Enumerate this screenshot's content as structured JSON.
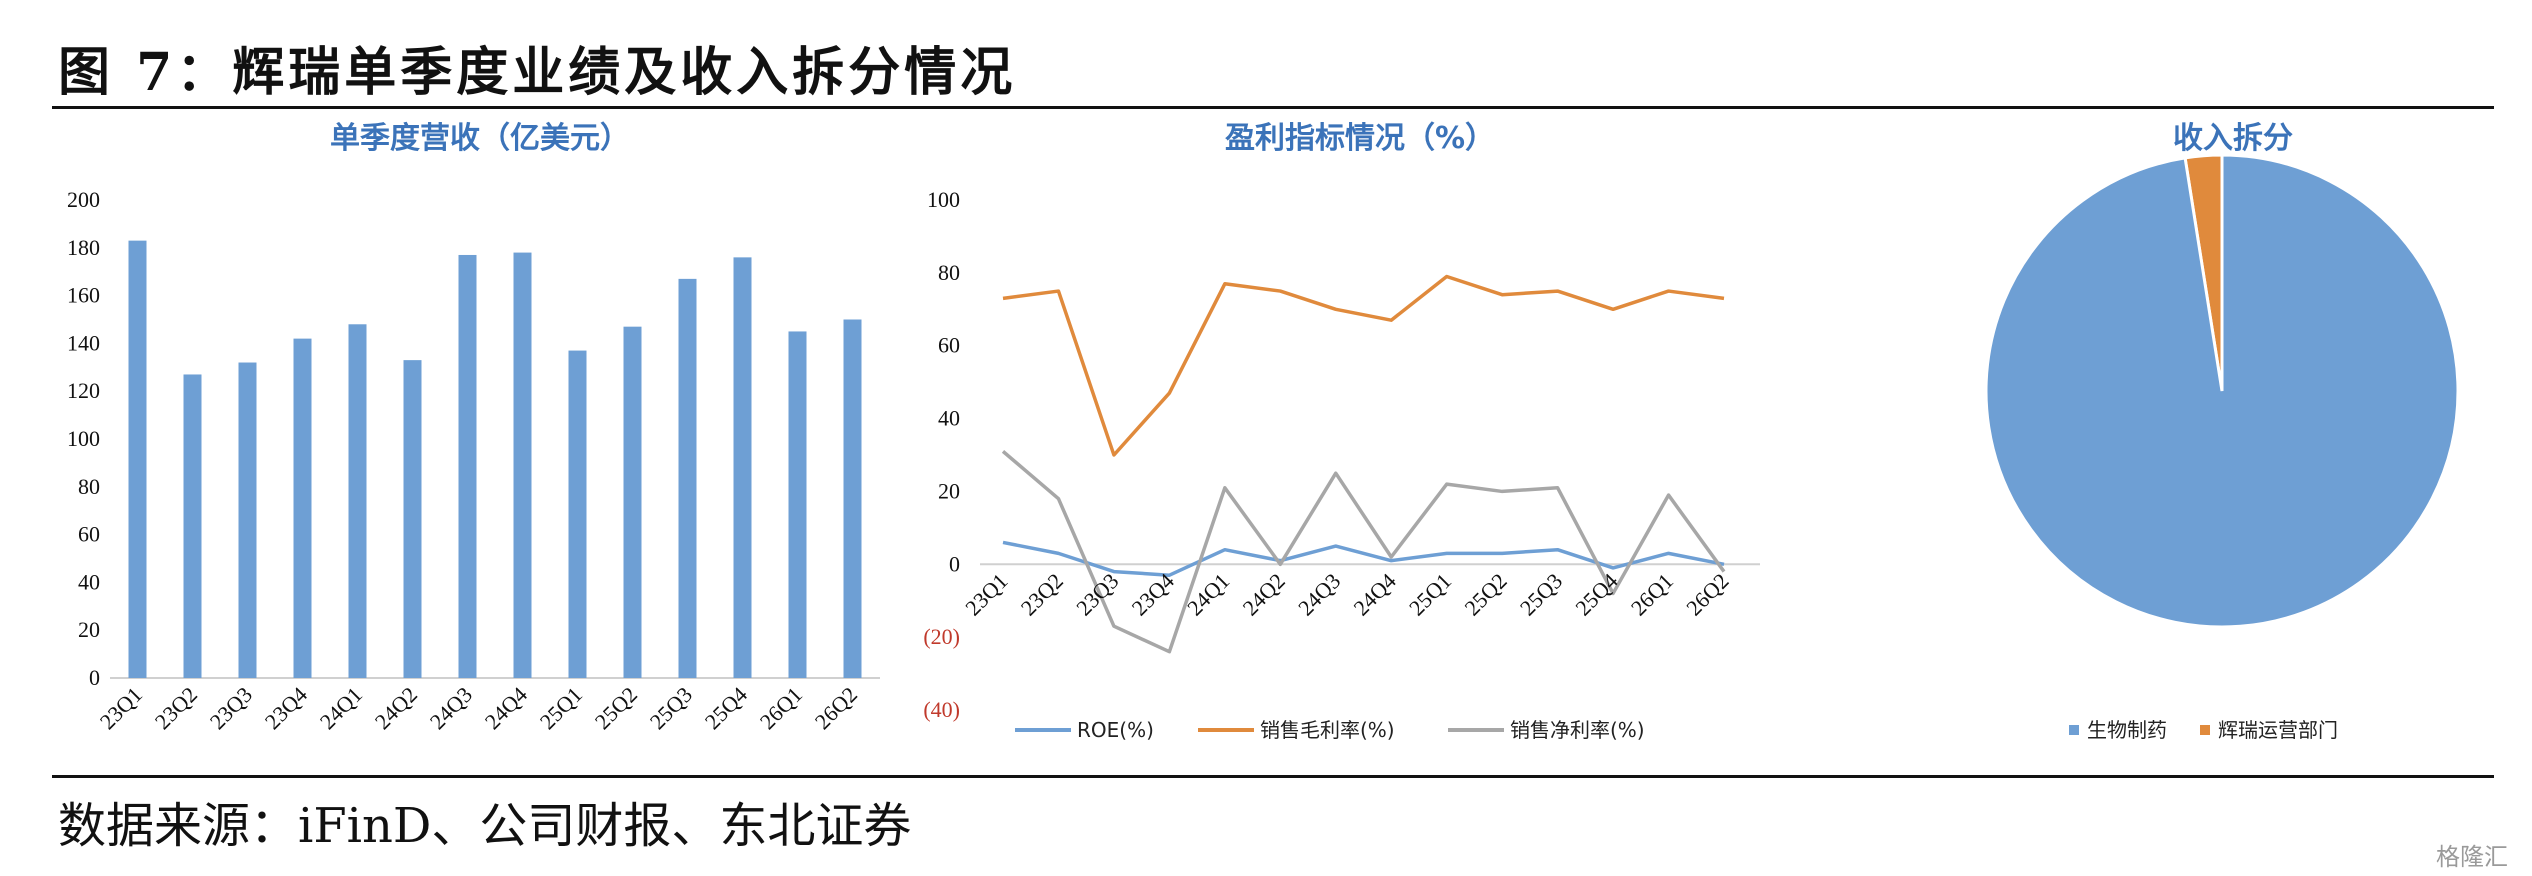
{
  "figure": {
    "title": "图 7：辉瑞单季度业绩及收入拆分情况",
    "source": "数据来源：iFinD、公司财报、东北证券",
    "watermark": "格隆汇"
  },
  "colors": {
    "blue": "#6e9fd4",
    "orange": "#e08a3c",
    "gray": "#a7a7a7",
    "title": "#3b73b9",
    "negative": "#c0392b"
  },
  "chart_data": [
    {
      "type": "bar",
      "title": "单季度营收（亿美元）",
      "categories": [
        "23Q1",
        "23Q2",
        "23Q3",
        "23Q4",
        "24Q1",
        "24Q2",
        "24Q3",
        "24Q4",
        "25Q1",
        "25Q2",
        "25Q3",
        "25Q4",
        "26Q1",
        "26Q2"
      ],
      "values": [
        183,
        127,
        132,
        142,
        148,
        133,
        177,
        178,
        137,
        147,
        167,
        176,
        145,
        150
      ],
      "ylim": [
        0,
        200
      ],
      "yticks": [
        "0",
        "20",
        "40",
        "60",
        "80",
        "100",
        "120",
        "140",
        "160",
        "180",
        "200"
      ],
      "grid": false,
      "legend": "none"
    },
    {
      "type": "line",
      "title": "盈利指标情况（%）",
      "categories": [
        "23Q1",
        "23Q2",
        "23Q3",
        "23Q4",
        "24Q1",
        "24Q2",
        "24Q3",
        "24Q4",
        "25Q1",
        "25Q2",
        "25Q3",
        "25Q4",
        "26Q1",
        "26Q2"
      ],
      "series": [
        {
          "name": "ROE(%)",
          "color": "#6e9fd4",
          "values": [
            6,
            3,
            -2,
            -3,
            4,
            1,
            5,
            1,
            3,
            3,
            4,
            -1,
            3,
            0
          ]
        },
        {
          "name": "销售毛利率(%)",
          "color": "#e08a3c",
          "values": [
            73,
            75,
            30,
            47,
            77,
            75,
            70,
            67,
            79,
            74,
            75,
            70,
            75,
            73
          ]
        },
        {
          "name": "销售净利率(%)",
          "color": "#a7a7a7",
          "values": [
            31,
            18,
            -17,
            -24,
            21,
            0,
            25,
            2,
            22,
            20,
            21,
            -8,
            19,
            -2
          ]
        }
      ],
      "ylim": [
        -40,
        100
      ],
      "yticks": [
        "(40)",
        "(20)",
        "0",
        "20",
        "40",
        "60",
        "80",
        "100"
      ],
      "grid": false,
      "legend": "bottom"
    },
    {
      "type": "pie",
      "title": "收入拆分",
      "labels": [
        "生物制药",
        "辉瑞运营部门"
      ],
      "values": [
        97.5,
        2.5
      ],
      "colors": [
        "#6e9fd4",
        "#e08a3c"
      ],
      "legend": "bottom"
    }
  ]
}
